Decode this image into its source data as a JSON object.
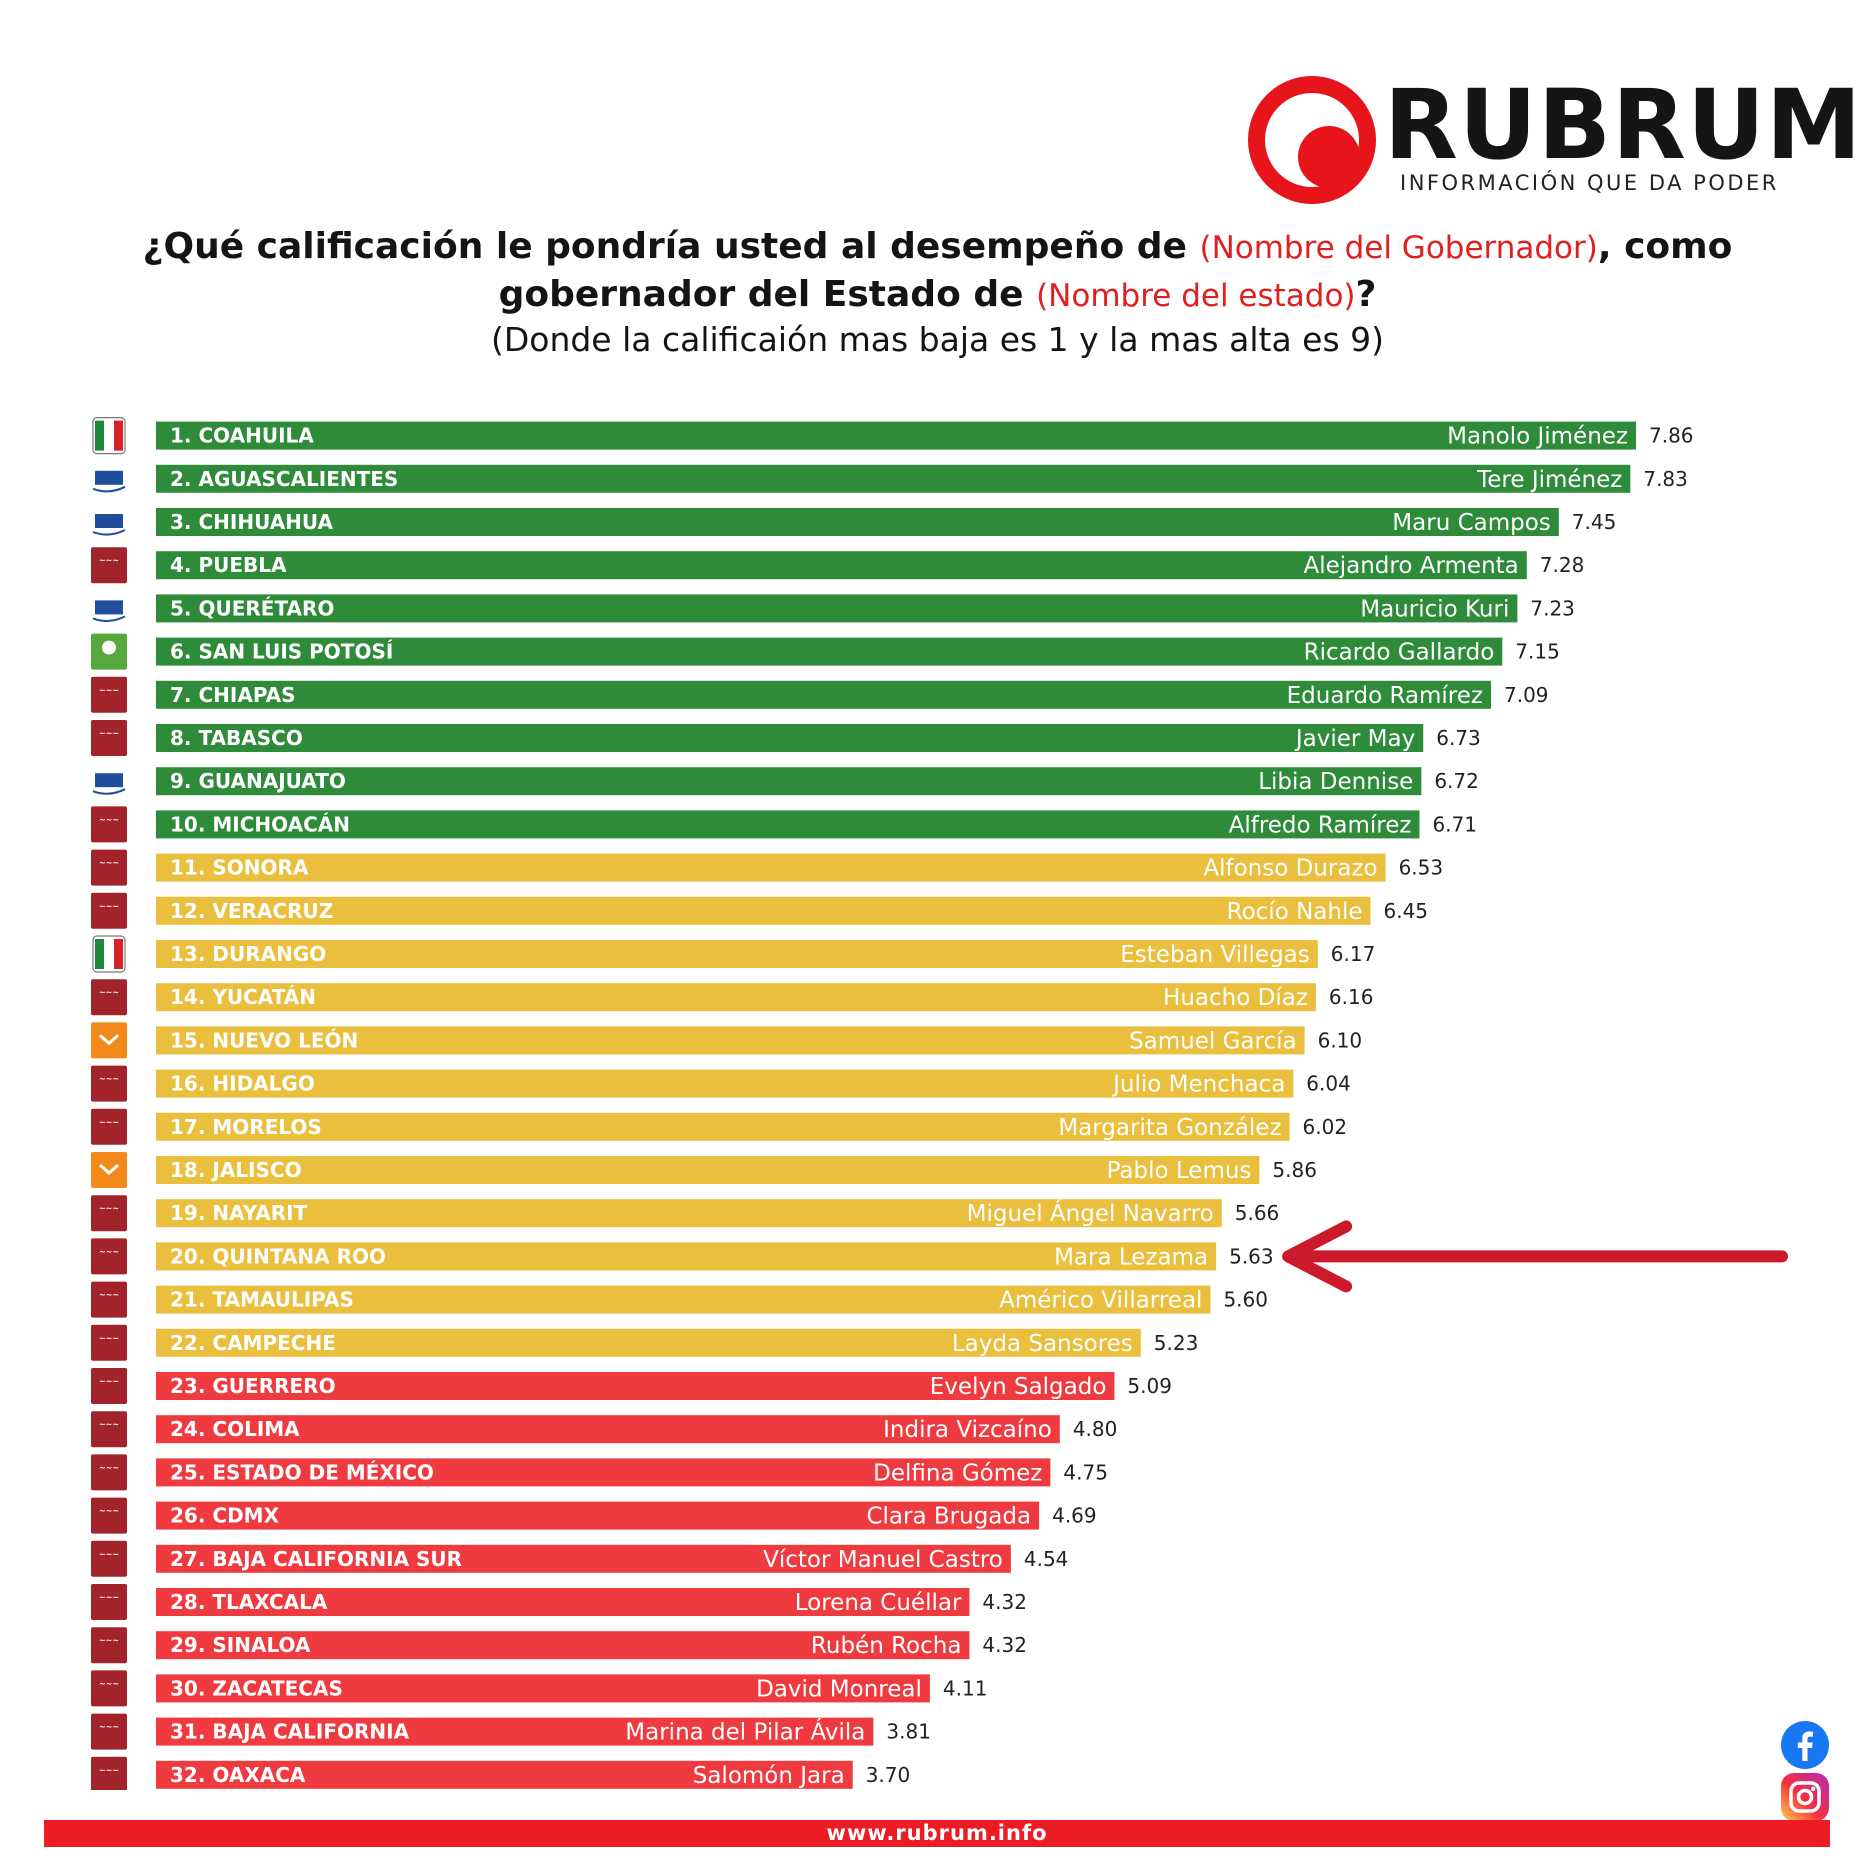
{
  "brand": {
    "name": "RUBRUM",
    "tagline": "INFORMACIÓN QUE DA PODER",
    "red": "#e8141b"
  },
  "headline": {
    "part1": "¿Qué calificación le pondría usted al desempeño de ",
    "highlight1": "(Nombre del Gobernador)",
    "part2": ", como",
    "part3": "gobernador del Estado de ",
    "highlight2": "(Nombre del estado)",
    "part4": "?",
    "note": "(Donde la calificaión mas baja es 1 y la mas alta es 9)"
  },
  "footer": {
    "url": "www.rubrum.info"
  },
  "social": [
    "facebook-icon",
    "instagram-icon"
  ],
  "colors": {
    "green": "#2e8b3a",
    "yellow": "#e9bf3d",
    "red": "#ef3a3f",
    "arrow": "#cc1a2a"
  },
  "chart_data": {
    "type": "bar",
    "orientation": "horizontal",
    "xlim": [
      0,
      7.86
    ],
    "highlight": "20. QUINTANA ROO",
    "rows": [
      {
        "label": "1. COAHUILA",
        "governor": "Manolo Jiménez",
        "value": 7.86,
        "party": "PRI",
        "band": "green"
      },
      {
        "label": "2. AGUASCALIENTES",
        "governor": "Tere Jiménez",
        "value": 7.83,
        "party": "PAN",
        "band": "green"
      },
      {
        "label": "3. CHIHUAHUA",
        "governor": "Maru Campos",
        "value": 7.45,
        "party": "PAN",
        "band": "green"
      },
      {
        "label": "4. PUEBLA",
        "governor": "Alejandro Armenta",
        "value": 7.28,
        "party": "morena",
        "band": "green"
      },
      {
        "label": "5. QUERÉTARO",
        "governor": "Mauricio Kuri",
        "value": 7.23,
        "party": "PAN",
        "band": "green"
      },
      {
        "label": "6. SAN LUIS POTOSÍ",
        "governor": "Ricardo Gallardo",
        "value": 7.15,
        "party": "VERDE",
        "band": "green"
      },
      {
        "label": "7. CHIAPAS",
        "governor": "Eduardo Ramírez",
        "value": 7.09,
        "party": "morena",
        "band": "green"
      },
      {
        "label": "8. TABASCO",
        "governor": "Javier May",
        "value": 6.73,
        "party": "morena",
        "band": "green"
      },
      {
        "label": "9. GUANAJUATO",
        "governor": "Libia Dennise",
        "value": 6.72,
        "party": "PAN",
        "band": "green"
      },
      {
        "label": "10. MICHOACÁN",
        "governor": "Alfredo Ramírez",
        "value": 6.71,
        "party": "morena",
        "band": "green"
      },
      {
        "label": "11. SONORA",
        "governor": "Alfonso Durazo",
        "value": 6.53,
        "party": "morena",
        "band": "yellow"
      },
      {
        "label": "12. VERACRUZ",
        "governor": "Rocío Nahle",
        "value": 6.45,
        "party": "morena",
        "band": "yellow"
      },
      {
        "label": "13. DURANGO",
        "governor": "Esteban Villegas",
        "value": 6.17,
        "party": "PRI",
        "band": "yellow"
      },
      {
        "label": "14. YUCATÁN",
        "governor": "Huacho Díaz",
        "value": 6.16,
        "party": "morena",
        "band": "yellow"
      },
      {
        "label": "15. NUEVO LEÓN",
        "governor": "Samuel García",
        "value": 6.1,
        "party": "MC",
        "band": "yellow"
      },
      {
        "label": "16. HIDALGO",
        "governor": "Julio Menchaca",
        "value": 6.04,
        "party": "morena",
        "band": "yellow"
      },
      {
        "label": "17. MORELOS",
        "governor": "Margarita González",
        "value": 6.02,
        "party": "morena",
        "band": "yellow"
      },
      {
        "label": "18. JALISCO",
        "governor": "Pablo Lemus",
        "value": 5.86,
        "party": "MC",
        "band": "yellow"
      },
      {
        "label": "19. NAYARIT",
        "governor": "Miguel Ángel Navarro",
        "value": 5.66,
        "party": "morena",
        "band": "yellow"
      },
      {
        "label": "20. QUINTANA ROO",
        "governor": "Mara Lezama",
        "value": 5.63,
        "party": "morena",
        "band": "yellow"
      },
      {
        "label": "21. TAMAULIPAS",
        "governor": "Américo Villarreal",
        "value": 5.6,
        "party": "morena",
        "band": "yellow"
      },
      {
        "label": "22. CAMPECHE",
        "governor": "Layda Sansores",
        "value": 5.23,
        "party": "morena",
        "band": "yellow"
      },
      {
        "label": "23. GUERRERO",
        "governor": "Evelyn Salgado",
        "value": 5.09,
        "party": "morena",
        "band": "red"
      },
      {
        "label": "24. COLIMA",
        "governor": "Indira Vizcaíno",
        "value": 4.8,
        "party": "morena",
        "band": "red"
      },
      {
        "label": "25. ESTADO DE MÉXICO",
        "governor": "Delfina Gómez",
        "value": 4.75,
        "party": "morena",
        "band": "red"
      },
      {
        "label": "26. CDMX",
        "governor": "Clara Brugada",
        "value": 4.69,
        "party": "morena",
        "band": "red"
      },
      {
        "label": "27. BAJA CALIFORNIA SUR",
        "governor": "Víctor Manuel Castro",
        "value": 4.54,
        "party": "morena",
        "band": "red"
      },
      {
        "label": "28. TLAXCALA",
        "governor": "Lorena Cuéllar",
        "value": 4.32,
        "party": "morena",
        "band": "red"
      },
      {
        "label": "29. SINALOA",
        "governor": "Rubén Rocha",
        "value": 4.32,
        "party": "morena",
        "band": "red"
      },
      {
        "label": "30. ZACATECAS",
        "governor": "David Monreal",
        "value": 4.11,
        "party": "morena",
        "band": "red"
      },
      {
        "label": "31. BAJA CALIFORNIA",
        "governor": "Marina del Pilar Ávila",
        "value": 3.81,
        "party": "morena",
        "band": "red"
      },
      {
        "label": "32. OAXACA",
        "governor": "Salomón Jara",
        "value": 3.7,
        "party": "morena",
        "band": "red"
      }
    ]
  }
}
